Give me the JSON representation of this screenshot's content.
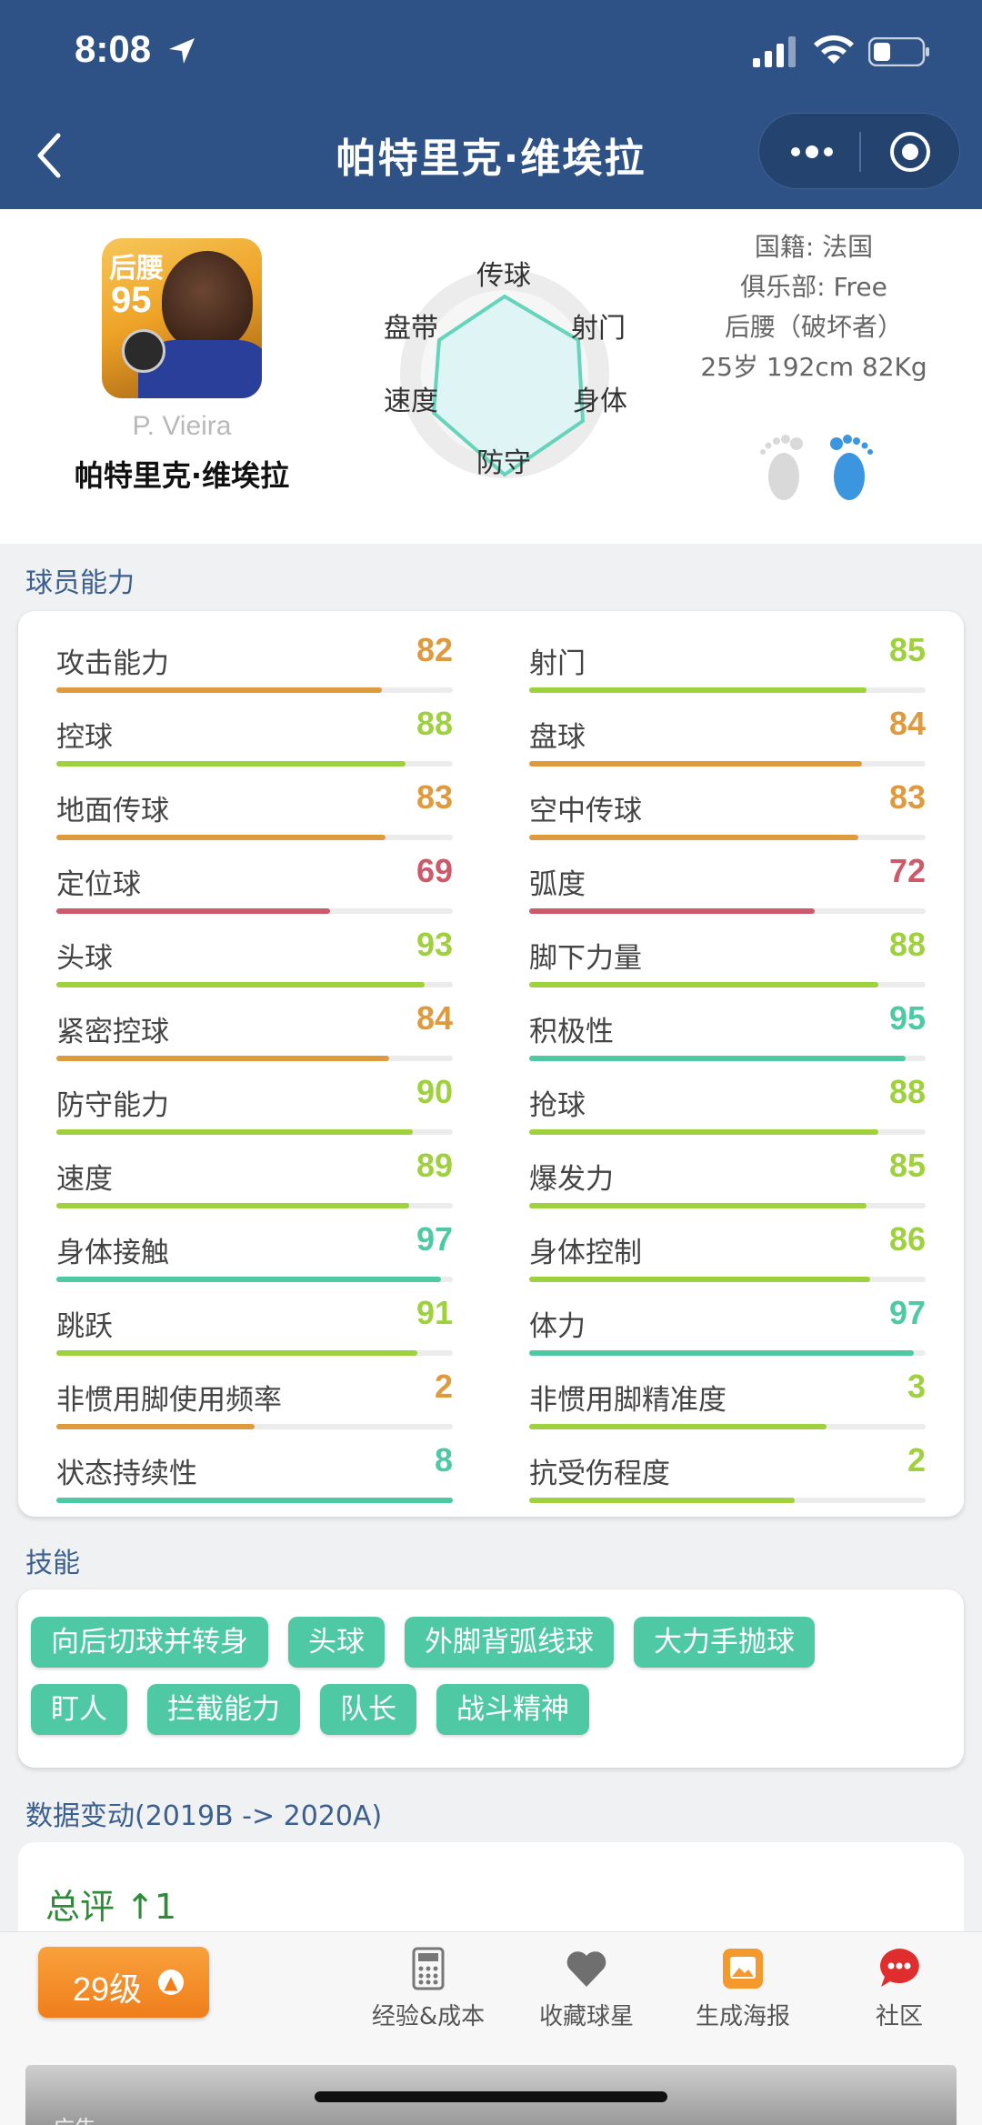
{
  "status_bar": {
    "time": "8:08"
  },
  "nav": {
    "title": "帕特里克·维埃拉"
  },
  "player": {
    "card_position": "后腰",
    "card_rating": "95",
    "name_en": "P. Vieira",
    "name_cn": "帕特里克·维埃拉",
    "nationality": "国籍: 法国",
    "club": "俱乐部: Free",
    "role": "后腰（破坏者）",
    "body": "25岁 192cm 82Kg",
    "preferred_foot": "right"
  },
  "radar": {
    "labels": [
      "传球",
      "射门",
      "身体",
      "防守",
      "速度",
      "盘带"
    ]
  },
  "abilities_title": "球员能力",
  "stat_colors": {
    "orange": "#e09a3e",
    "green": "#9fd03e",
    "red": "#cd5a6a",
    "teal": "#4ec9a3"
  },
  "stats_left": [
    {
      "label": "攻击能力",
      "value": "82",
      "color": "orange"
    },
    {
      "label": "控球",
      "value": "88",
      "color": "green"
    },
    {
      "label": "地面传球",
      "value": "83",
      "color": "orange"
    },
    {
      "label": "定位球",
      "value": "69",
      "color": "red"
    },
    {
      "label": "头球",
      "value": "93",
      "color": "green"
    },
    {
      "label": "紧密控球",
      "value": "84",
      "color": "orange"
    },
    {
      "label": "防守能力",
      "value": "90",
      "color": "green"
    },
    {
      "label": "速度",
      "value": "89",
      "color": "green"
    },
    {
      "label": "身体接触",
      "value": "97",
      "color": "teal"
    },
    {
      "label": "跳跃",
      "value": "91",
      "color": "green"
    },
    {
      "label": "非惯用脚使用频率",
      "value": "2",
      "color": "orange",
      "fill_pct": 50
    },
    {
      "label": "状态持续性",
      "value": "8",
      "color": "teal",
      "fill_pct": 100
    }
  ],
  "stats_right": [
    {
      "label": "射门",
      "value": "85",
      "color": "green"
    },
    {
      "label": "盘球",
      "value": "84",
      "color": "orange"
    },
    {
      "label": "空中传球",
      "value": "83",
      "color": "orange"
    },
    {
      "label": "弧度",
      "value": "72",
      "color": "red"
    },
    {
      "label": "脚下力量",
      "value": "88",
      "color": "green"
    },
    {
      "label": "积极性",
      "value": "95",
      "color": "teal"
    },
    {
      "label": "抢球",
      "value": "88",
      "color": "green"
    },
    {
      "label": "爆发力",
      "value": "85",
      "color": "green"
    },
    {
      "label": "身体控制",
      "value": "86",
      "color": "green"
    },
    {
      "label": "体力",
      "value": "97",
      "color": "teal"
    },
    {
      "label": "非惯用脚精准度",
      "value": "3",
      "color": "green",
      "fill_pct": 75
    },
    {
      "label": "抗受伤程度",
      "value": "2",
      "color": "green",
      "fill_pct": 67
    }
  ],
  "skills_title": "技能",
  "skills_row1": [
    "向后切球并转身",
    "头球",
    "外脚背弧线球",
    "大力手抛球"
  ],
  "skills_row2": [
    "盯人",
    "拦截能力",
    "队长",
    "战斗精神"
  ],
  "data_change": {
    "title": "数据变动(2019B -> 2020A)",
    "total": "总评 ↑1"
  },
  "bottom": {
    "level": "29级",
    "tabs": [
      {
        "label": "经验&成本",
        "icon": "calculator-icon"
      },
      {
        "label": "收藏球星",
        "icon": "heart-icon"
      },
      {
        "label": "生成海报",
        "icon": "poster-icon"
      },
      {
        "label": "社区",
        "icon": "chat-icon"
      }
    ],
    "ad_label": "广告"
  }
}
